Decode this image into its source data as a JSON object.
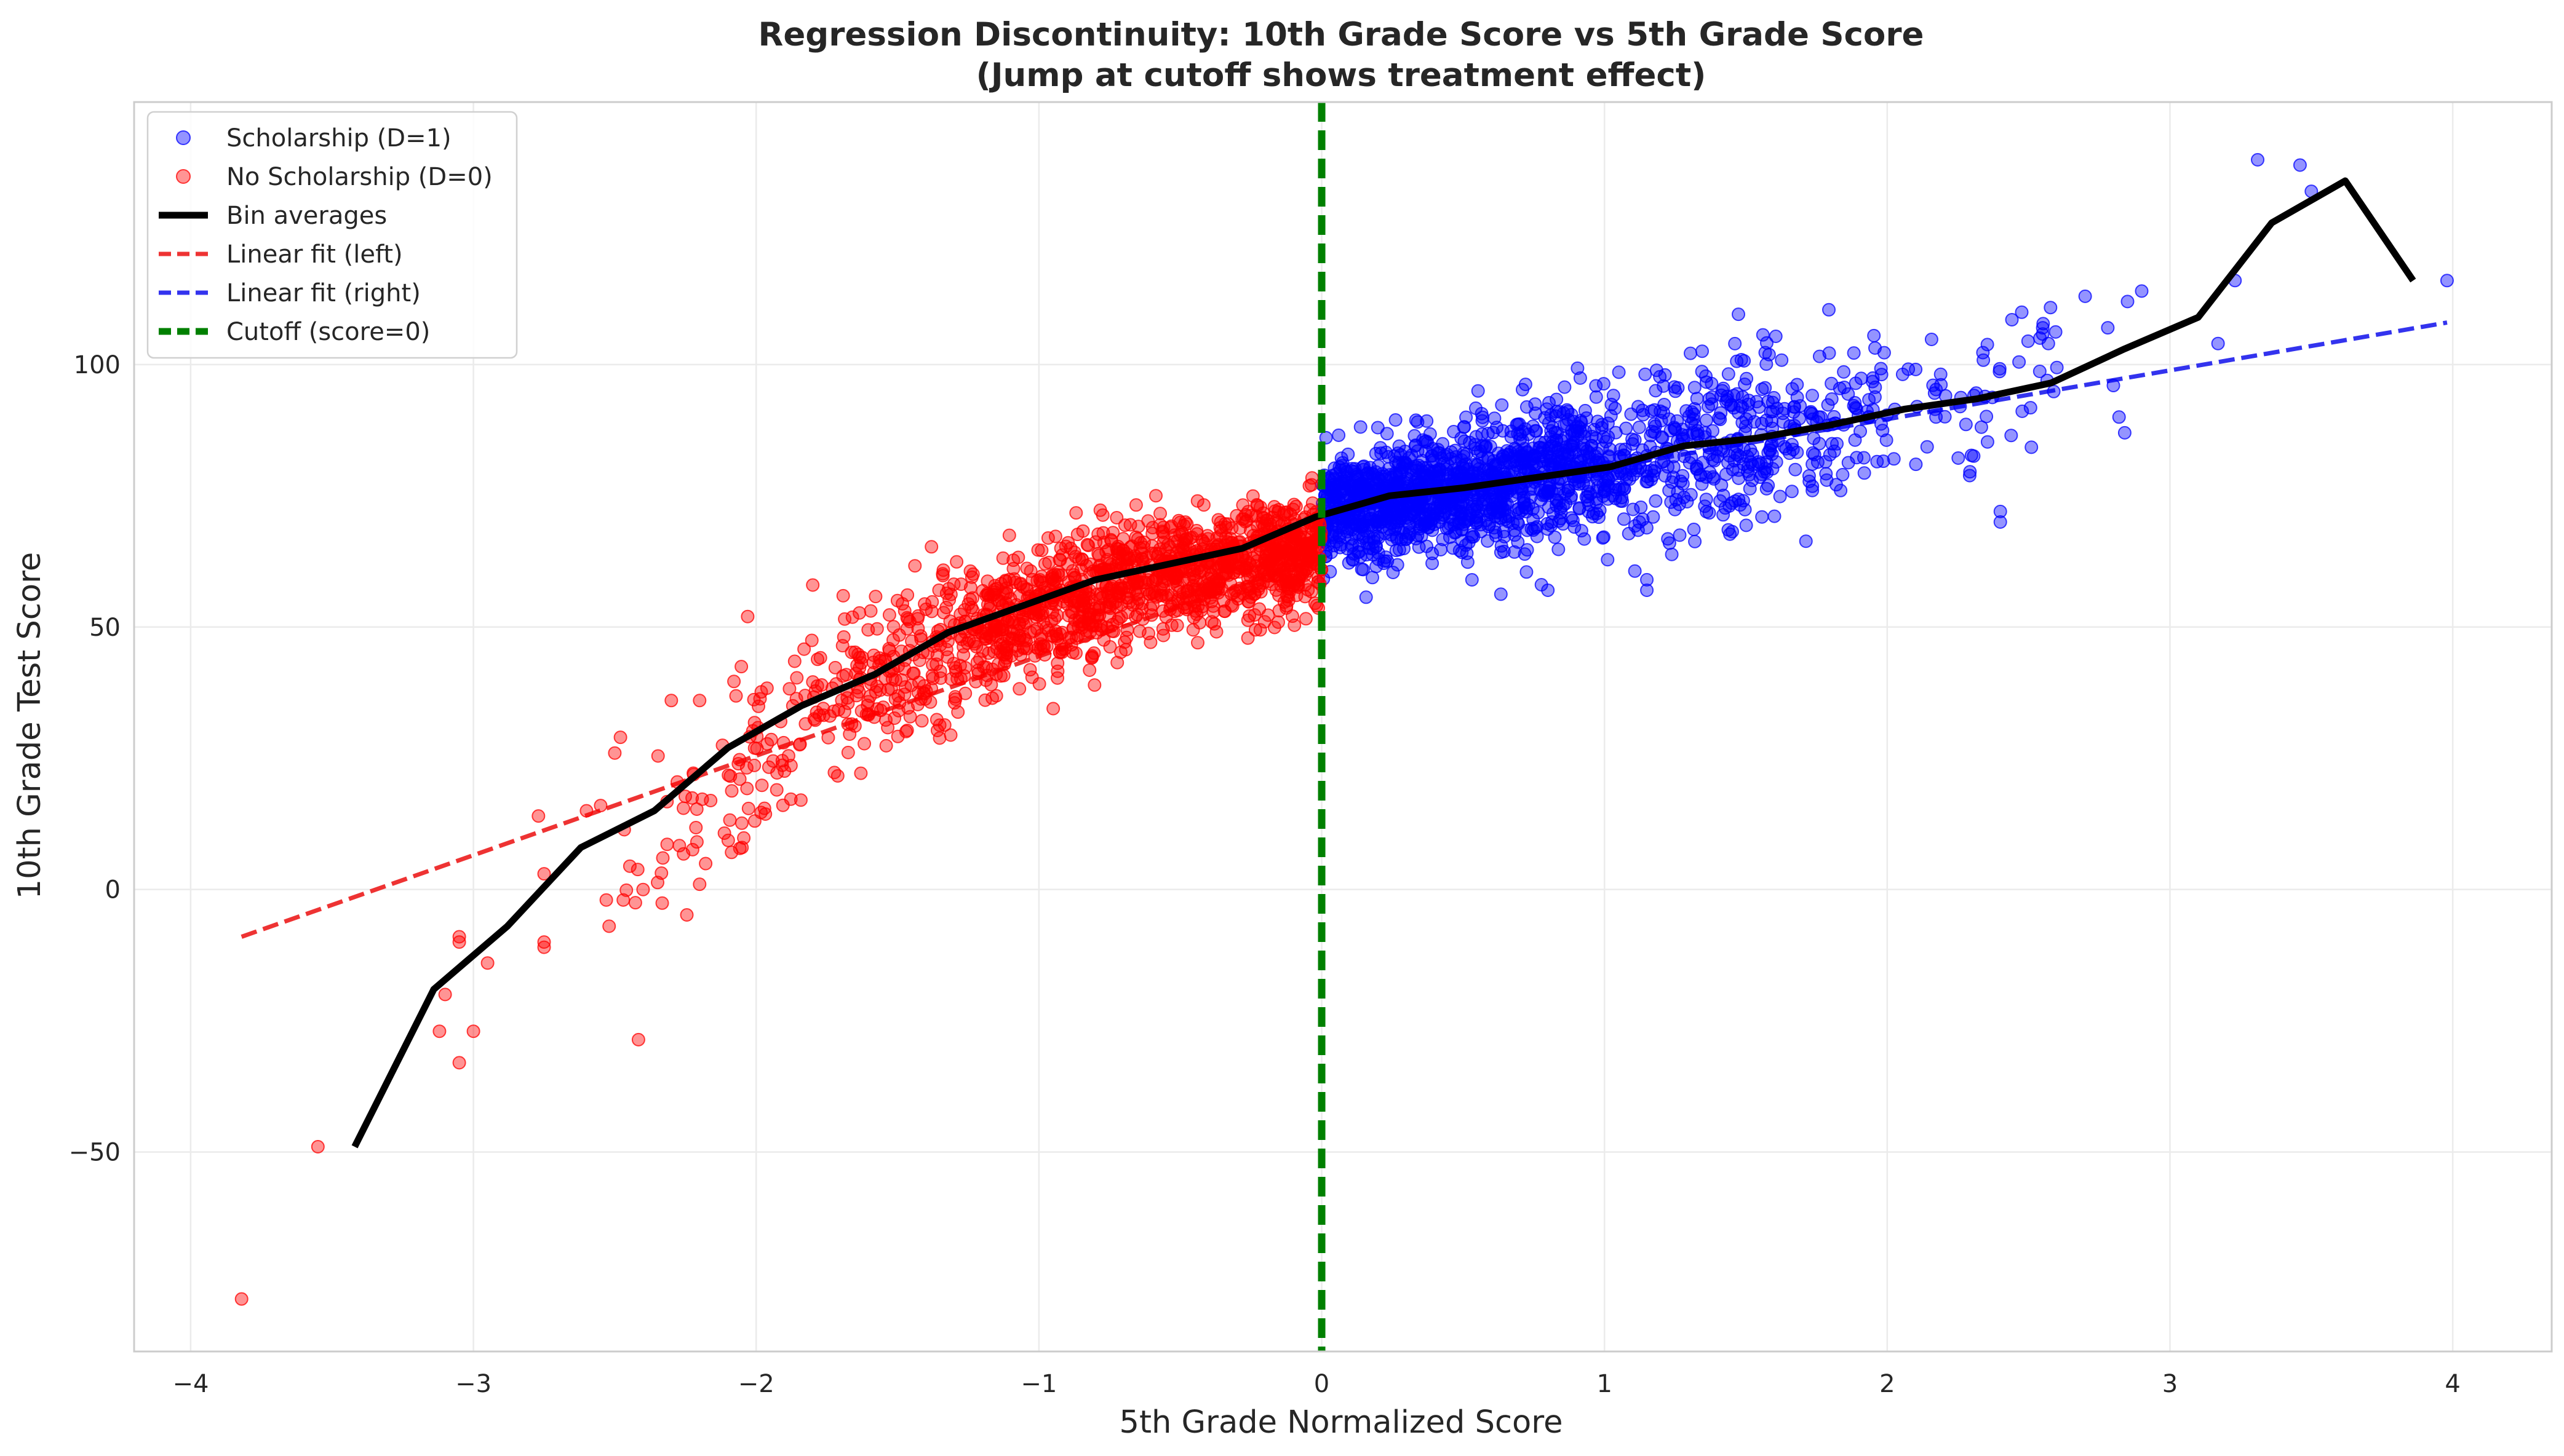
{
  "chart_data": {
    "type": "scatter",
    "title": "Regression Discontinuity: 10th Grade Score vs 5th Grade Score",
    "subtitle": "(Jump at cutoff shows treatment effect)",
    "xlabel": "5th Grade Normalized Score",
    "ylabel": "10th Grade Test Score",
    "xlim": [
      -4.2,
      4.35
    ],
    "ylim": [
      -88,
      150
    ],
    "xticks": [
      -4,
      -3,
      -2,
      -1,
      0,
      1,
      2,
      3,
      4
    ],
    "yticks": [
      -50,
      0,
      50,
      100
    ],
    "grid": true,
    "legend_position": "top-left",
    "cutoff": 0,
    "colors": {
      "treated": "#0000ff",
      "control": "#ff0000",
      "bin": "#000000",
      "fit_left": "#ee3333",
      "fit_right": "#3333ee",
      "cutoff": "#008000"
    },
    "series": [
      {
        "name": "Scholarship (D=1)",
        "kind": "scatter",
        "color": "#0000ff",
        "clusters": [
          {
            "x_range": [
              0.0,
              0.5
            ],
            "n": 700,
            "intercept": 72,
            "slope": 9,
            "spread": 5.5
          },
          {
            "x_range": [
              0.5,
              1.0
            ],
            "n": 560,
            "intercept": 70,
            "slope": 12,
            "spread": 6.5
          },
          {
            "x_range": [
              1.0,
              1.6
            ],
            "n": 330,
            "intercept": 70,
            "slope": 11,
            "spread": 8
          },
          {
            "x_range": [
              1.6,
              2.0
            ],
            "n": 110,
            "intercept": 68,
            "slope": 12,
            "spread": 8
          },
          {
            "x_range": [
              2.0,
              2.6
            ],
            "n": 55,
            "intercept": 66,
            "slope": 13,
            "spread": 8
          }
        ],
        "outliers": [
          {
            "x": 2.7,
            "y": 113
          },
          {
            "x": 2.78,
            "y": 107
          },
          {
            "x": 2.85,
            "y": 112
          },
          {
            "x": 2.9,
            "y": 114
          },
          {
            "x": 2.82,
            "y": 90
          },
          {
            "x": 2.84,
            "y": 87
          },
          {
            "x": 2.8,
            "y": 96
          },
          {
            "x": 2.55,
            "y": 107
          },
          {
            "x": 2.57,
            "y": 104
          },
          {
            "x": 2.4,
            "y": 70
          },
          {
            "x": 2.4,
            "y": 72
          },
          {
            "x": 3.17,
            "y": 104
          },
          {
            "x": 3.23,
            "y": 116
          },
          {
            "x": 3.31,
            "y": 139
          },
          {
            "x": 3.46,
            "y": 138
          },
          {
            "x": 3.5,
            "y": 133
          },
          {
            "x": 3.98,
            "y": 116
          },
          {
            "x": 1.15,
            "y": 59
          },
          {
            "x": 1.15,
            "y": 57
          },
          {
            "x": 0.8,
            "y": 57
          }
        ]
      },
      {
        "name": "No Scholarship (D=0)",
        "kind": "scatter",
        "color": "#ff0000",
        "clusters": [
          {
            "x_range": [
              -0.6,
              0.0
            ],
            "n": 660,
            "intercept": 65,
            "slope": 9,
            "spread": 5
          },
          {
            "x_range": [
              -1.2,
              -0.6
            ],
            "n": 540,
            "intercept": 71,
            "slope": 18,
            "spread": 6
          },
          {
            "x_range": [
              -1.7,
              -1.2
            ],
            "n": 230,
            "intercept": 84,
            "slope": 28,
            "spread": 7
          },
          {
            "x_range": [
              -2.1,
              -1.7
            ],
            "n": 85,
            "intercept": 95,
            "slope": 35,
            "spread": 8
          },
          {
            "x_range": [
              -2.5,
              -2.1
            ],
            "n": 30,
            "intercept": 115,
            "slope": 45,
            "spread": 9
          }
        ],
        "outliers": [
          {
            "x": -2.5,
            "y": 26
          },
          {
            "x": -2.48,
            "y": 29
          },
          {
            "x": -2.55,
            "y": 16
          },
          {
            "x": -2.6,
            "y": 15
          },
          {
            "x": -2.53,
            "y": -2
          },
          {
            "x": -2.52,
            "y": -7
          },
          {
            "x": -2.47,
            "y": -2
          },
          {
            "x": -2.4,
            "y": 0
          },
          {
            "x": -2.75,
            "y": 3
          },
          {
            "x": -2.75,
            "y": -10
          },
          {
            "x": -2.75,
            "y": -11
          },
          {
            "x": -2.77,
            "y": 14
          },
          {
            "x": -2.2,
            "y": 36
          },
          {
            "x": -2.3,
            "y": 36
          },
          {
            "x": -2.2,
            "y": 1
          },
          {
            "x": -2.33,
            "y": 6
          },
          {
            "x": -2.05,
            "y": 8
          },
          {
            "x": -2.03,
            "y": 52
          },
          {
            "x": -3.05,
            "y": -9
          },
          {
            "x": -3.05,
            "y": -10
          },
          {
            "x": -2.95,
            "y": -14
          },
          {
            "x": -3.1,
            "y": -20
          },
          {
            "x": -3.12,
            "y": -27
          },
          {
            "x": -3.0,
            "y": -27
          },
          {
            "x": -3.05,
            "y": -33
          },
          {
            "x": -3.55,
            "y": -49
          },
          {
            "x": -3.82,
            "y": -78
          },
          {
            "x": -1.8,
            "y": 58
          }
        ]
      },
      {
        "name": "Bin averages",
        "kind": "line",
        "color": "#000000",
        "x": [
          -3.42,
          -3.14,
          -2.88,
          -2.62,
          -2.36,
          -2.1,
          -1.84,
          -1.58,
          -1.32,
          -1.06,
          -0.8,
          -0.54,
          -0.28,
          -0.02,
          0.24,
          0.5,
          0.76,
          1.02,
          1.28,
          1.54,
          1.8,
          2.06,
          2.32,
          2.58,
          2.84,
          3.1,
          3.36,
          3.62,
          3.86
        ],
        "y": [
          -49,
          -19,
          -7,
          8,
          15,
          27,
          35,
          41,
          49,
          54,
          59,
          62,
          65,
          71,
          75,
          76.5,
          78.5,
          80.5,
          84.5,
          86,
          88.5,
          91.5,
          93.5,
          96.5,
          103,
          109,
          127,
          135,
          116
        ]
      },
      {
        "name": "Linear fit (left)",
        "kind": "line",
        "style": "dashed",
        "color": "#ee3333",
        "x": [
          -3.82,
          -0.02
        ],
        "y": [
          -9,
          63
        ]
      },
      {
        "name": "Linear fit (right)",
        "kind": "line",
        "style": "dashed",
        "color": "#3333ee",
        "x": [
          0.0,
          3.98
        ],
        "y": [
          71,
          108
        ]
      },
      {
        "name": "Cutoff (score=0)",
        "kind": "vline",
        "style": "dashed",
        "color": "#008000",
        "x": 0
      }
    ]
  }
}
